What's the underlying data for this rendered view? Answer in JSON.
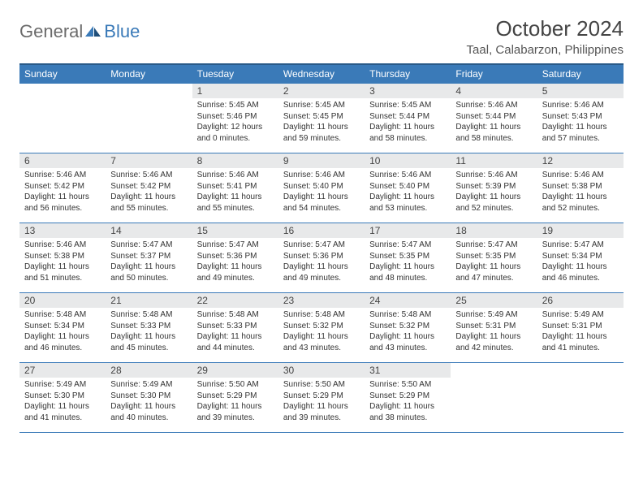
{
  "brand": {
    "text1": "General",
    "text2": "Blue"
  },
  "title": "October 2024",
  "location": "Taal, Calabarzon, Philippines",
  "colors": {
    "header_bg": "#3a7ab8",
    "header_text": "#ffffff",
    "daynum_bg": "#e8e9ea",
    "border": "#3a7ab8",
    "logo_gray": "#6b6b6b",
    "logo_blue": "#3a7ab8"
  },
  "day_headers": [
    "Sunday",
    "Monday",
    "Tuesday",
    "Wednesday",
    "Thursday",
    "Friday",
    "Saturday"
  ],
  "weeks": [
    [
      {
        "n": "",
        "sr": "",
        "ss": "",
        "dl": "",
        "empty": true
      },
      {
        "n": "",
        "sr": "",
        "ss": "",
        "dl": "",
        "empty": true
      },
      {
        "n": "1",
        "sr": "Sunrise: 5:45 AM",
        "ss": "Sunset: 5:46 PM",
        "dl": "Daylight: 12 hours and 0 minutes."
      },
      {
        "n": "2",
        "sr": "Sunrise: 5:45 AM",
        "ss": "Sunset: 5:45 PM",
        "dl": "Daylight: 11 hours and 59 minutes."
      },
      {
        "n": "3",
        "sr": "Sunrise: 5:45 AM",
        "ss": "Sunset: 5:44 PM",
        "dl": "Daylight: 11 hours and 58 minutes."
      },
      {
        "n": "4",
        "sr": "Sunrise: 5:46 AM",
        "ss": "Sunset: 5:44 PM",
        "dl": "Daylight: 11 hours and 58 minutes."
      },
      {
        "n": "5",
        "sr": "Sunrise: 5:46 AM",
        "ss": "Sunset: 5:43 PM",
        "dl": "Daylight: 11 hours and 57 minutes."
      }
    ],
    [
      {
        "n": "6",
        "sr": "Sunrise: 5:46 AM",
        "ss": "Sunset: 5:42 PM",
        "dl": "Daylight: 11 hours and 56 minutes."
      },
      {
        "n": "7",
        "sr": "Sunrise: 5:46 AM",
        "ss": "Sunset: 5:42 PM",
        "dl": "Daylight: 11 hours and 55 minutes."
      },
      {
        "n": "8",
        "sr": "Sunrise: 5:46 AM",
        "ss": "Sunset: 5:41 PM",
        "dl": "Daylight: 11 hours and 55 minutes."
      },
      {
        "n": "9",
        "sr": "Sunrise: 5:46 AM",
        "ss": "Sunset: 5:40 PM",
        "dl": "Daylight: 11 hours and 54 minutes."
      },
      {
        "n": "10",
        "sr": "Sunrise: 5:46 AM",
        "ss": "Sunset: 5:40 PM",
        "dl": "Daylight: 11 hours and 53 minutes."
      },
      {
        "n": "11",
        "sr": "Sunrise: 5:46 AM",
        "ss": "Sunset: 5:39 PM",
        "dl": "Daylight: 11 hours and 52 minutes."
      },
      {
        "n": "12",
        "sr": "Sunrise: 5:46 AM",
        "ss": "Sunset: 5:38 PM",
        "dl": "Daylight: 11 hours and 52 minutes."
      }
    ],
    [
      {
        "n": "13",
        "sr": "Sunrise: 5:46 AM",
        "ss": "Sunset: 5:38 PM",
        "dl": "Daylight: 11 hours and 51 minutes."
      },
      {
        "n": "14",
        "sr": "Sunrise: 5:47 AM",
        "ss": "Sunset: 5:37 PM",
        "dl": "Daylight: 11 hours and 50 minutes."
      },
      {
        "n": "15",
        "sr": "Sunrise: 5:47 AM",
        "ss": "Sunset: 5:36 PM",
        "dl": "Daylight: 11 hours and 49 minutes."
      },
      {
        "n": "16",
        "sr": "Sunrise: 5:47 AM",
        "ss": "Sunset: 5:36 PM",
        "dl": "Daylight: 11 hours and 49 minutes."
      },
      {
        "n": "17",
        "sr": "Sunrise: 5:47 AM",
        "ss": "Sunset: 5:35 PM",
        "dl": "Daylight: 11 hours and 48 minutes."
      },
      {
        "n": "18",
        "sr": "Sunrise: 5:47 AM",
        "ss": "Sunset: 5:35 PM",
        "dl": "Daylight: 11 hours and 47 minutes."
      },
      {
        "n": "19",
        "sr": "Sunrise: 5:47 AM",
        "ss": "Sunset: 5:34 PM",
        "dl": "Daylight: 11 hours and 46 minutes."
      }
    ],
    [
      {
        "n": "20",
        "sr": "Sunrise: 5:48 AM",
        "ss": "Sunset: 5:34 PM",
        "dl": "Daylight: 11 hours and 46 minutes."
      },
      {
        "n": "21",
        "sr": "Sunrise: 5:48 AM",
        "ss": "Sunset: 5:33 PM",
        "dl": "Daylight: 11 hours and 45 minutes."
      },
      {
        "n": "22",
        "sr": "Sunrise: 5:48 AM",
        "ss": "Sunset: 5:33 PM",
        "dl": "Daylight: 11 hours and 44 minutes."
      },
      {
        "n": "23",
        "sr": "Sunrise: 5:48 AM",
        "ss": "Sunset: 5:32 PM",
        "dl": "Daylight: 11 hours and 43 minutes."
      },
      {
        "n": "24",
        "sr": "Sunrise: 5:48 AM",
        "ss": "Sunset: 5:32 PM",
        "dl": "Daylight: 11 hours and 43 minutes."
      },
      {
        "n": "25",
        "sr": "Sunrise: 5:49 AM",
        "ss": "Sunset: 5:31 PM",
        "dl": "Daylight: 11 hours and 42 minutes."
      },
      {
        "n": "26",
        "sr": "Sunrise: 5:49 AM",
        "ss": "Sunset: 5:31 PM",
        "dl": "Daylight: 11 hours and 41 minutes."
      }
    ],
    [
      {
        "n": "27",
        "sr": "Sunrise: 5:49 AM",
        "ss": "Sunset: 5:30 PM",
        "dl": "Daylight: 11 hours and 41 minutes."
      },
      {
        "n": "28",
        "sr": "Sunrise: 5:49 AM",
        "ss": "Sunset: 5:30 PM",
        "dl": "Daylight: 11 hours and 40 minutes."
      },
      {
        "n": "29",
        "sr": "Sunrise: 5:50 AM",
        "ss": "Sunset: 5:29 PM",
        "dl": "Daylight: 11 hours and 39 minutes."
      },
      {
        "n": "30",
        "sr": "Sunrise: 5:50 AM",
        "ss": "Sunset: 5:29 PM",
        "dl": "Daylight: 11 hours and 39 minutes."
      },
      {
        "n": "31",
        "sr": "Sunrise: 5:50 AM",
        "ss": "Sunset: 5:29 PM",
        "dl": "Daylight: 11 hours and 38 minutes."
      },
      {
        "n": "",
        "sr": "",
        "ss": "",
        "dl": "",
        "empty": true
      },
      {
        "n": "",
        "sr": "",
        "ss": "",
        "dl": "",
        "empty": true
      }
    ]
  ]
}
